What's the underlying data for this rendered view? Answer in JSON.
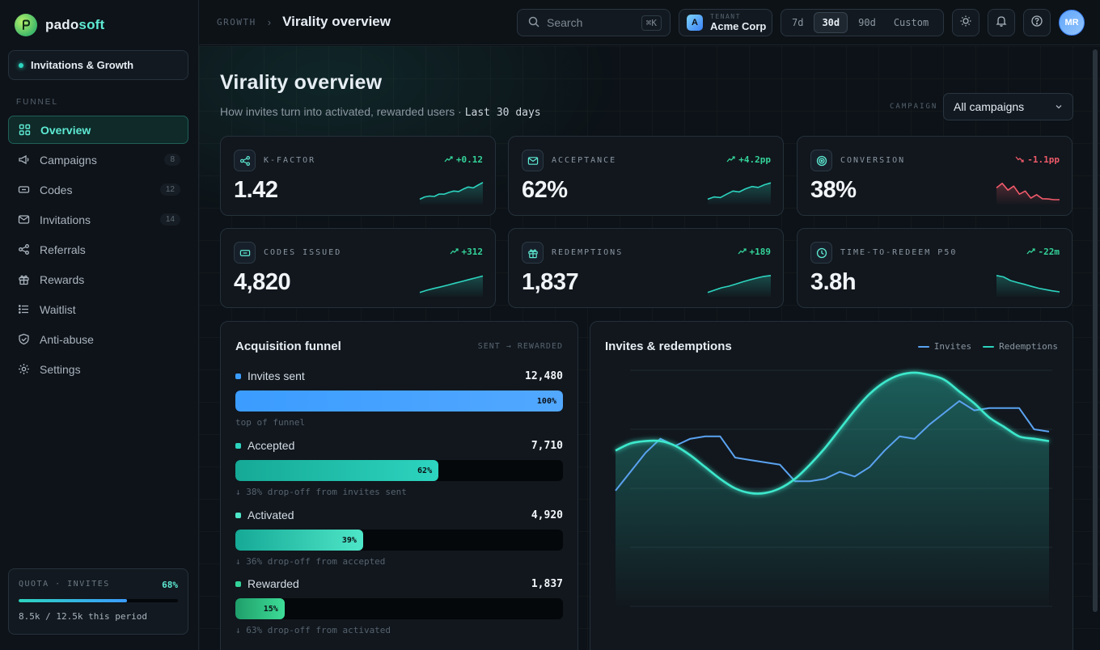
{
  "brand": {
    "name_prefix": "pado",
    "name_suffix": "soft"
  },
  "workspace": {
    "label": "Invitations & Growth"
  },
  "sidebar": {
    "section_label": "FUNNEL",
    "items": [
      {
        "label": "Overview",
        "icon": "grid-icon",
        "badge": ""
      },
      {
        "label": "Campaigns",
        "icon": "megaphone-icon",
        "badge": "8"
      },
      {
        "label": "Codes",
        "icon": "ticket-icon",
        "badge": "12"
      },
      {
        "label": "Invitations",
        "icon": "mail-icon",
        "badge": "14"
      },
      {
        "label": "Referrals",
        "icon": "share-icon",
        "badge": ""
      },
      {
        "label": "Rewards",
        "icon": "gift-icon",
        "badge": ""
      },
      {
        "label": "Waitlist",
        "icon": "list-icon",
        "badge": ""
      },
      {
        "label": "Anti-abuse",
        "icon": "shield-icon",
        "badge": ""
      },
      {
        "label": "Settings",
        "icon": "gear-icon",
        "badge": ""
      }
    ],
    "quota": {
      "label": "QUOTA · INVITES",
      "percent_label": "68%",
      "fill_fraction": 0.68,
      "text": "8.5k / 12.5k this period"
    }
  },
  "topbar": {
    "breadcrumb_parent": "GROWTH",
    "breadcrumb_current": "Virality overview",
    "search_placeholder": "Search",
    "search_shortcut": "⌘K",
    "tenant_label": "TENANT",
    "tenant_name": "Acme Corp",
    "tenant_initial": "A",
    "ranges": [
      "7d",
      "30d",
      "90d",
      "Custom"
    ],
    "active_range": "30d",
    "user_initials": "MR"
  },
  "page": {
    "title": "Virality overview",
    "subtitle": "How invites turn into activated, rewarded users ·",
    "subtitle_period": "Last 30 days",
    "campaign_label": "CAMPAIGN",
    "campaign_value": "All campaigns"
  },
  "kpis": [
    {
      "label": "K-FACTOR",
      "value": "1.42",
      "delta": "+0.12",
      "trend": "up",
      "icon": "share-icon",
      "spark": [
        2,
        3,
        3.4,
        3.2,
        4.3,
        4.2,
        5,
        5.6,
        5.4,
        6.5,
        7.4,
        7.0,
        8.2,
        9.4
      ]
    },
    {
      "label": "ACCEPTANCE",
      "value": "62%",
      "delta": "+4.2pp",
      "trend": "up",
      "icon": "mail-icon",
      "spark": [
        2,
        3,
        2.7,
        4.2,
        5.6,
        5.2,
        6.6,
        7.6,
        7.2,
        8.4,
        9.2
      ]
    },
    {
      "label": "CONVERSION",
      "value": "38%",
      "delta": "-1.1pp",
      "trend": "down",
      "icon": "target-icon",
      "spark": [
        7,
        9,
        6,
        7.8,
        4.2,
        5.6,
        2.5,
        4,
        2.2,
        2.1,
        1.8,
        1.8
      ]
    },
    {
      "label": "CODES ISSUED",
      "value": "4,820",
      "delta": "+312",
      "trend": "up",
      "icon": "ticket-icon",
      "spark": [
        1.5,
        2.5,
        3.3,
        4.0,
        4.8,
        5.6,
        6.4,
        7.2,
        8,
        8.8
      ]
    },
    {
      "label": "REDEMPTIONS",
      "value": "1,837",
      "delta": "+189",
      "trend": "up",
      "icon": "gift-icon",
      "spark": [
        1.5,
        2.6,
        3.6,
        4.3,
        5.2,
        6.2,
        7.1,
        7.9,
        8.6,
        9.0
      ]
    },
    {
      "label": "TIME-TO-REDEEM P50",
      "value": "3.8h",
      "delta": "-22m",
      "trend": "up",
      "icon": "clock-icon",
      "spark": [
        9,
        8.4,
        6.8,
        5.9,
        5.1,
        4.2,
        3.4,
        2.8,
        2.2,
        1.8
      ]
    }
  ],
  "funnel": {
    "title": "Acquisition funnel",
    "hint": "SENT → REWARDED",
    "steps": [
      {
        "label": "Invites sent",
        "value": "12,480",
        "percent_label": "100%",
        "fraction": 1.0,
        "note": "top of funnel",
        "color": "#3b9cff"
      },
      {
        "label": "Accepted",
        "value": "7,710",
        "percent_label": "62%",
        "fraction": 0.62,
        "note": "↓ 38% drop-off from invites sent",
        "color": "#2dd4bf"
      },
      {
        "label": "Activated",
        "value": "4,920",
        "percent_label": "39%",
        "fraction": 0.39,
        "note": "↓ 36% drop-off from accepted",
        "color": "#4ee6c8"
      },
      {
        "label": "Rewarded",
        "value": "1,837",
        "percent_label": "15%",
        "fraction": 0.15,
        "note": "↓ 63% drop-off from activated",
        "color": "#34d399"
      }
    ]
  },
  "chart_data": {
    "type": "line",
    "title": "Invites & redemptions",
    "xlabel": "",
    "ylabel": "",
    "grid": true,
    "legend": "top-right",
    "ylim": [
      0,
      100
    ],
    "x": [
      1,
      2,
      3,
      4,
      5,
      6,
      7,
      8,
      9,
      10,
      11,
      12,
      13,
      14,
      15,
      16,
      17,
      18,
      19,
      20,
      21,
      22,
      23,
      24,
      25,
      26,
      27,
      28,
      29,
      30
    ],
    "series": [
      {
        "name": "Invites",
        "color": "#5aa2f0",
        "values": [
          49,
          57,
          65,
          71,
          68,
          71,
          72,
          72,
          63,
          62,
          61,
          60,
          53,
          53,
          54,
          57,
          55,
          59,
          66,
          72,
          71,
          77,
          82,
          87,
          83,
          84,
          84,
          84,
          75,
          74
        ]
      },
      {
        "name": "Redemptions",
        "color": "#2dd4bf",
        "values": [
          66,
          69,
          70,
          70,
          68,
          64,
          59,
          54,
          50,
          48,
          48,
          50,
          54,
          60,
          67,
          75,
          83,
          90,
          95,
          98,
          99,
          98,
          96,
          91,
          86,
          80,
          76,
          72,
          71,
          70
        ]
      }
    ]
  },
  "colors": {
    "accent": "#2dd4bf",
    "up": "#34d399",
    "down": "#f05a6a",
    "invites": "#5aa2f0"
  }
}
